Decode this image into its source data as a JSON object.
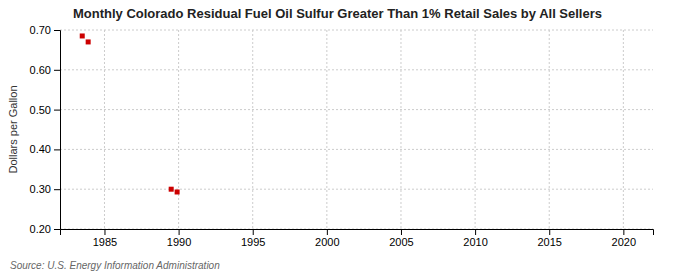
{
  "chart_data": {
    "type": "scatter",
    "title": "Monthly Colorado Residual Fuel Oil Sulfur Greater Than 1% Retail Sales by All Sellers",
    "ylabel": "Dollars per Gallon",
    "source": "Source: U.S. Energy Information Administration",
    "x": [
      1983.5,
      1983.9,
      1989.5,
      1989.9
    ],
    "values": [
      0.685,
      0.67,
      0.3,
      0.293
    ],
    "color": "#cc0000",
    "marker": "square",
    "xlim": [
      1982,
      2022
    ],
    "ylim": [
      0.2,
      0.7
    ],
    "xticks": [
      1985,
      1990,
      1995,
      2000,
      2005,
      2010,
      2015,
      2020
    ],
    "yticks": [
      {
        "value": 0.2,
        "label": "0.20"
      },
      {
        "value": 0.3,
        "label": "0.30"
      },
      {
        "value": 0.4,
        "label": "0.40"
      },
      {
        "value": 0.5,
        "label": "0.50"
      },
      {
        "value": 0.6,
        "label": "0.60"
      },
      {
        "value": 0.7,
        "label": "0.70"
      }
    ],
    "grid": true
  }
}
